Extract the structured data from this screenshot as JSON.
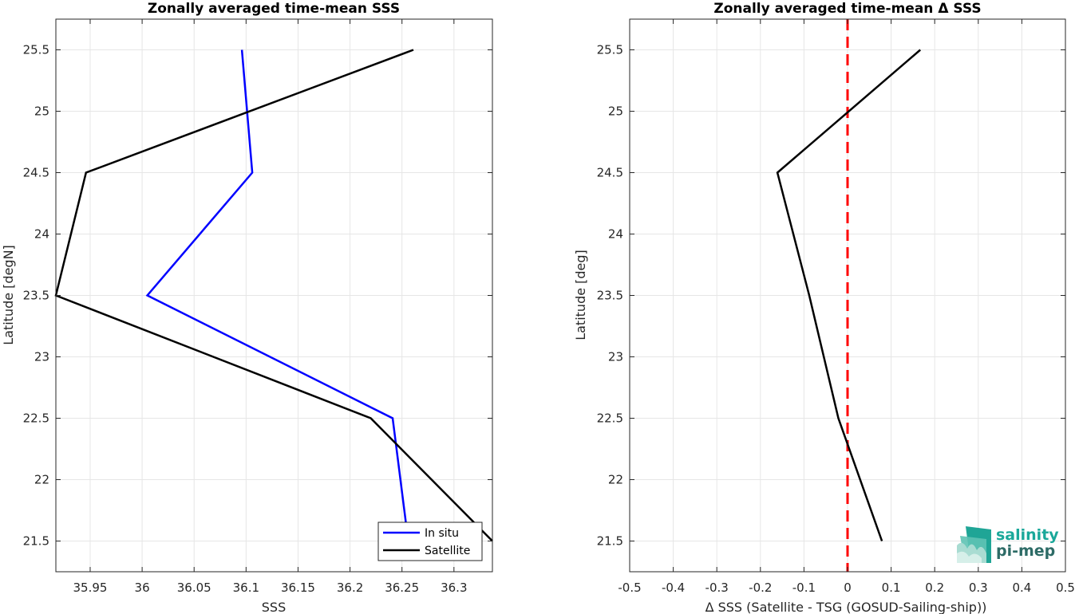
{
  "chart_data": [
    {
      "type": "line",
      "title": "Zonally averaged time-mean SSS",
      "xlabel": "SSS",
      "ylabel": "Latitude [degN]",
      "xlim": [
        35.917,
        36.337
      ],
      "ylim": [
        21.25,
        25.75
      ],
      "xticks": [
        "35.95",
        "36",
        "36.05",
        "36.1",
        "36.15",
        "36.2",
        "36.25",
        "36.3"
      ],
      "xtick_values": [
        35.95,
        36.0,
        36.05,
        36.1,
        36.15,
        36.2,
        36.25,
        36.3
      ],
      "yticks": [
        "21.5",
        "22",
        "22.5",
        "23",
        "23.5",
        "24",
        "24.5",
        "25",
        "25.5"
      ],
      "ytick_values": [
        21.5,
        22.0,
        22.5,
        23.0,
        23.5,
        24.0,
        24.5,
        25.0,
        25.5
      ],
      "grid": true,
      "legend_position": "bottom-right",
      "series": [
        {
          "name": "In situ",
          "color": "#0000ff",
          "x": [
            36.256,
            36.241,
            36.005,
            36.106,
            36.096
          ],
          "y": [
            21.5,
            22.5,
            23.5,
            24.5,
            25.5
          ]
        },
        {
          "name": "Satellite",
          "color": "#000000",
          "x": [
            36.337,
            36.22,
            35.917,
            35.946,
            36.261
          ],
          "y": [
            21.5,
            22.5,
            23.5,
            24.5,
            25.5
          ]
        }
      ]
    },
    {
      "type": "line",
      "title": "Zonally averaged time-mean Δ SSS",
      "xlabel": "Δ SSS (Satellite - TSG (GOSUD-Sailing-ship))",
      "ylabel": "Latitude [deg]",
      "xlim": [
        -0.5,
        0.5
      ],
      "ylim": [
        21.25,
        25.75
      ],
      "xticks": [
        "-0.5",
        "-0.4",
        "-0.3",
        "-0.2",
        "-0.1",
        "0",
        "0.1",
        "0.2",
        "0.3",
        "0.4",
        "0.5"
      ],
      "xtick_values": [
        -0.5,
        -0.4,
        -0.3,
        -0.2,
        -0.1,
        0.0,
        0.1,
        0.2,
        0.3,
        0.4,
        0.5
      ],
      "yticks": [
        "21.5",
        "22",
        "22.5",
        "23",
        "23.5",
        "24",
        "24.5",
        "25",
        "25.5"
      ],
      "ytick_values": [
        21.5,
        22.0,
        22.5,
        23.0,
        23.5,
        24.0,
        24.5,
        25.0,
        25.5
      ],
      "grid": true,
      "series": [
        {
          "color": "#000000",
          "x": [
            0.079,
            -0.021,
            -0.088,
            -0.161,
            0.167
          ],
          "y": [
            21.5,
            22.5,
            23.5,
            24.5,
            25.5
          ]
        }
      ],
      "reference_line": {
        "x": 0,
        "color": "#ff0000",
        "style": "dashed"
      }
    }
  ],
  "logo": {
    "line1": "salinity",
    "line2": "pi-mep",
    "color1": "#1aa89a",
    "color2": "#2d6b66"
  }
}
